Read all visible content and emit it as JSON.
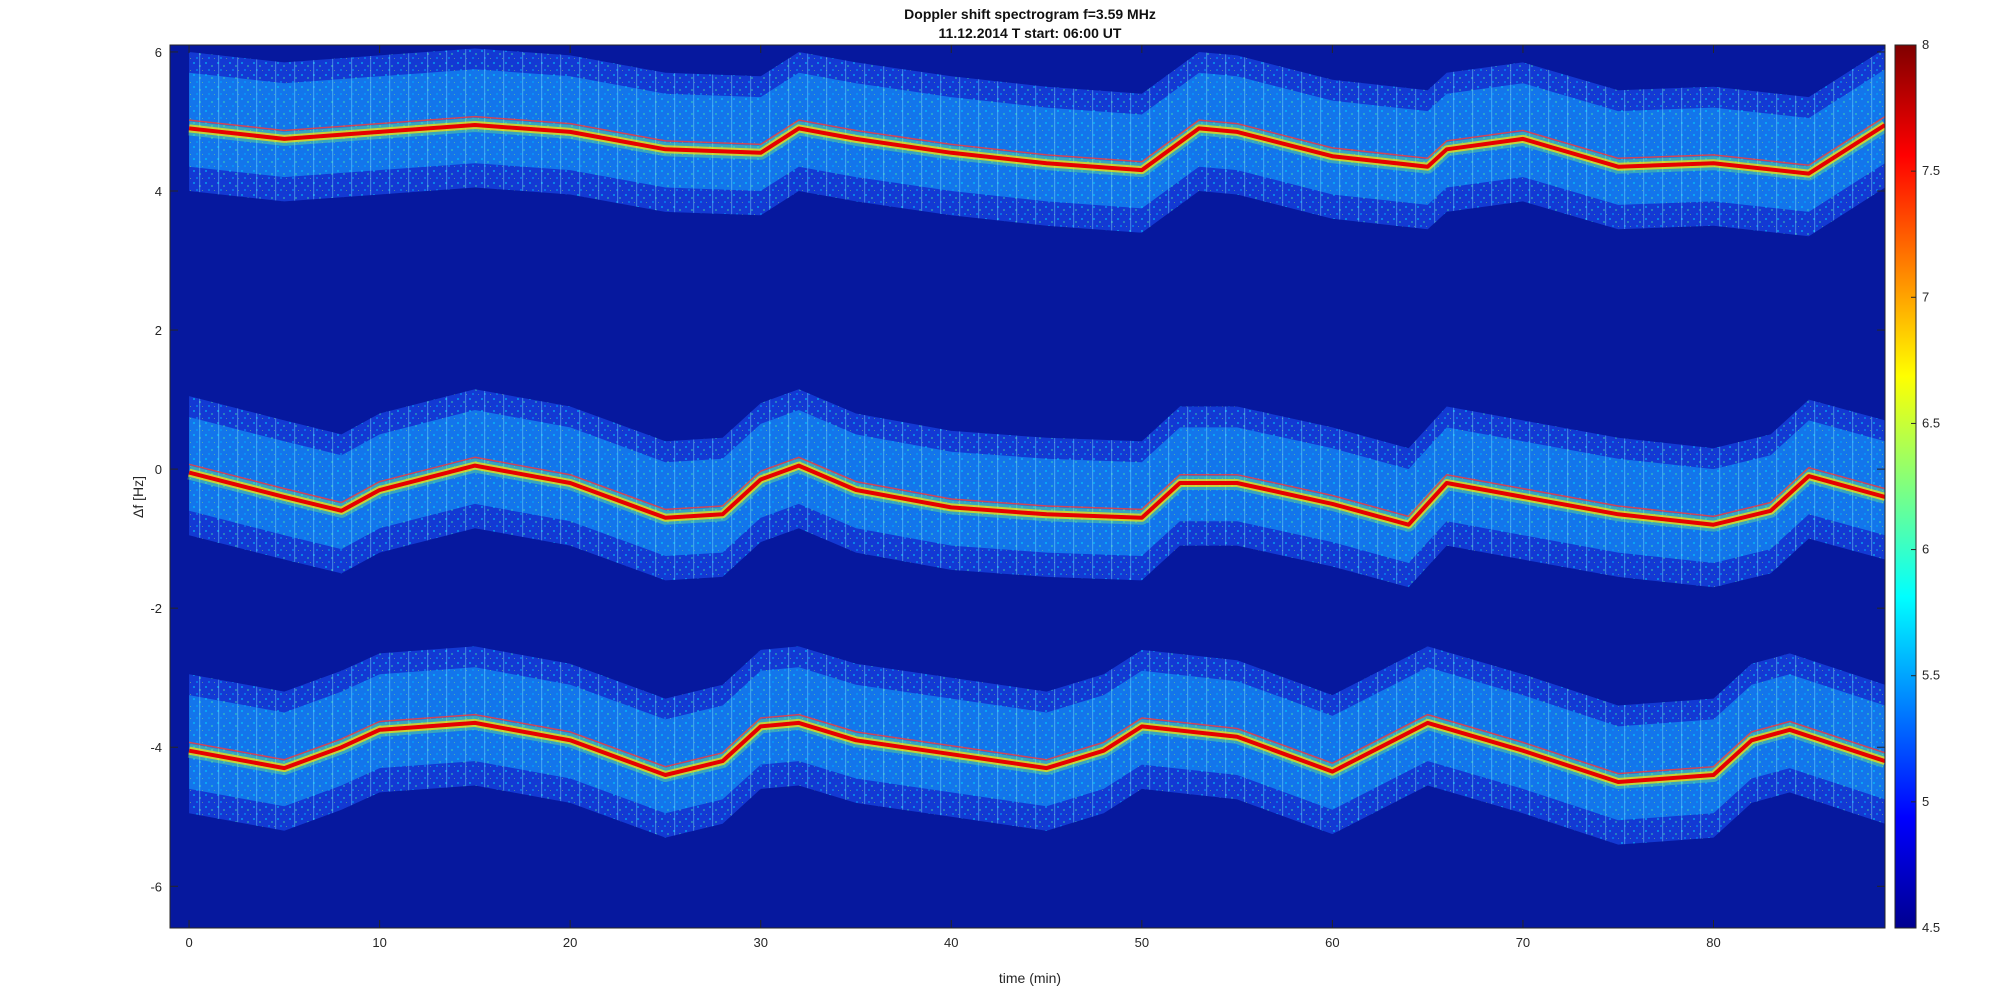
{
  "chart_data": {
    "type": "heatmap",
    "title": "Doppler shift spectrogram f=3.59 MHz",
    "subtitle": "11.12.2014   T start: 06:00 UT",
    "xlabel": "time (min)",
    "ylabel": "Δf [Hz]",
    "xlim": [
      -1,
      89
    ],
    "ylim": [
      -6.6,
      6.1
    ],
    "x_ticks": [
      "0",
      "10",
      "20",
      "30",
      "40",
      "50",
      "60",
      "70",
      "80"
    ],
    "y_ticks": [
      "6",
      "4",
      "2",
      "0",
      "-2",
      "-4",
      "-6"
    ],
    "colorbar": {
      "range": [
        4.5,
        8
      ],
      "ticks": [
        "8",
        "7.5",
        "7",
        "6.5",
        "6",
        "5.5",
        "5",
        "4.5"
      ],
      "colormap": "jet"
    },
    "grid": false,
    "series": [
      {
        "x": [
          0,
          5,
          10,
          15,
          20,
          25,
          30,
          32,
          35,
          40,
          45,
          50,
          53,
          55,
          60,
          65,
          66,
          70,
          75,
          80,
          85,
          87,
          89
        ],
        "y": [
          4.9,
          4.75,
          4.85,
          4.95,
          4.85,
          4.6,
          4.55,
          4.9,
          4.75,
          4.55,
          4.4,
          4.3,
          4.9,
          4.85,
          4.5,
          4.35,
          4.6,
          4.75,
          4.35,
          4.4,
          4.25,
          4.6,
          4.95
        ]
      },
      {
        "x": [
          0,
          5,
          8,
          10,
          15,
          20,
          25,
          28,
          30,
          32,
          35,
          40,
          45,
          50,
          52,
          55,
          60,
          64,
          66,
          70,
          75,
          80,
          83,
          85,
          89
        ],
        "y": [
          -0.05,
          -0.4,
          -0.6,
          -0.3,
          0.05,
          -0.2,
          -0.7,
          -0.65,
          -0.15,
          0.05,
          -0.3,
          -0.55,
          -0.65,
          -0.7,
          -0.2,
          -0.2,
          -0.5,
          -0.8,
          -0.2,
          -0.4,
          -0.65,
          -0.8,
          -0.6,
          -0.1,
          -0.4
        ]
      },
      {
        "x": [
          0,
          5,
          8,
          10,
          15,
          20,
          25,
          28,
          30,
          32,
          35,
          40,
          45,
          48,
          50,
          55,
          60,
          65,
          70,
          75,
          80,
          82,
          84,
          89
        ],
        "y": [
          -4.05,
          -4.3,
          -4.0,
          -3.75,
          -3.65,
          -3.9,
          -4.4,
          -4.2,
          -3.7,
          -3.65,
          -3.9,
          -4.1,
          -4.3,
          -4.05,
          -3.7,
          -3.85,
          -4.35,
          -3.65,
          -4.05,
          -4.5,
          -4.4,
          -3.9,
          -3.75,
          -4.2
        ]
      }
    ]
  }
}
